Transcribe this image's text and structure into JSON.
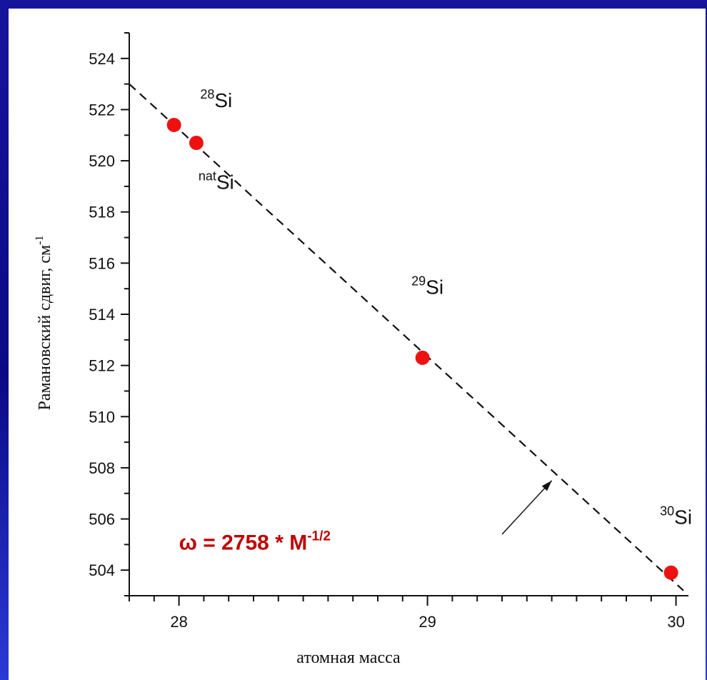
{
  "colors": {
    "background_blue": "#0b0a86",
    "panel": "#ffffff",
    "marker": "#ee1111",
    "formula": "#c00000",
    "axis": "#111111"
  },
  "chart_data": {
    "type": "scatter",
    "xlabel": "атомная масса",
    "ylabel": "Рамановский сдвиг, см",
    "ylabel_sup": "-1",
    "xlim": [
      27.8,
      30.05
    ],
    "ylim": [
      503,
      525
    ],
    "x_ticks": [
      28,
      29,
      30
    ],
    "x_minor_step": 0.1,
    "y_ticks": [
      504,
      506,
      508,
      510,
      512,
      514,
      516,
      518,
      520,
      522,
      524
    ],
    "y_minor_step": 1,
    "points": [
      {
        "x": 27.98,
        "y": 521.4
      },
      {
        "x": 28.07,
        "y": 520.7
      },
      {
        "x": 28.98,
        "y": 512.3
      },
      {
        "x": 29.98,
        "y": 503.9
      }
    ],
    "fit_line": {
      "style": "dashed",
      "from": {
        "x": 27.8,
        "y": 523.0
      },
      "to": {
        "x": 30.03,
        "y": 503.2
      }
    },
    "isotope_labels": [
      {
        "sup": "28",
        "text": "Si",
        "x": 28.15,
        "y": 522.1
      },
      {
        "sup": "nat",
        "text": "Si",
        "x": 28.15,
        "y": 518.9
      },
      {
        "sup": "29",
        "text": "Si",
        "x": 29.0,
        "y": 514.8
      },
      {
        "sup": "30",
        "text": "Si",
        "x": 30.0,
        "y": 505.8
      }
    ],
    "arrow": {
      "from": {
        "x": 29.3,
        "y": 505.4
      },
      "to": {
        "x": 29.5,
        "y": 507.5
      }
    },
    "formula": {
      "text": "ω = 2758 * M",
      "sup": "-1/2",
      "x": 28.0,
      "y": 504.8
    },
    "grid": false,
    "legend": "none"
  }
}
